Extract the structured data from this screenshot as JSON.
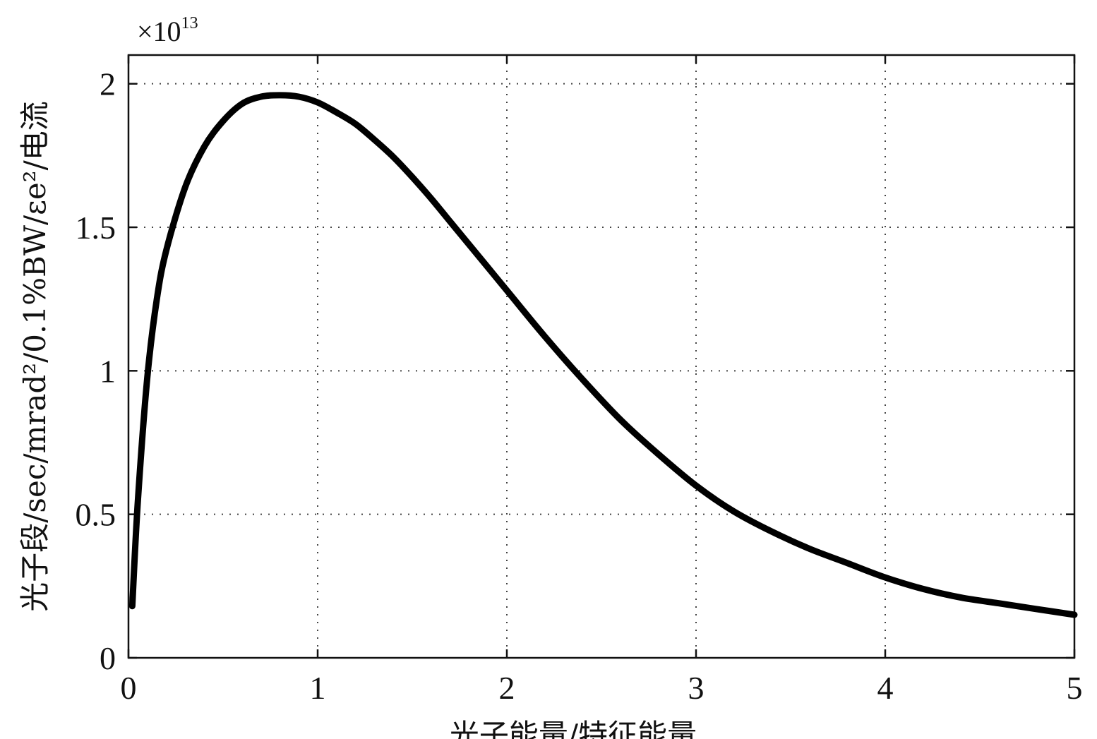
{
  "chart_data": {
    "type": "line",
    "title": "",
    "xlabel": "光子能量/特征能量",
    "ylabel": "光子段/sec/mrad²/0.1%BW/εe²/电流",
    "y_multiplier": "×10",
    "y_multiplier_exponent": "13",
    "xlim": [
      0,
      5
    ],
    "ylim": [
      0,
      2.1
    ],
    "x_ticks": [
      "0",
      "1",
      "2",
      "3",
      "4",
      "5"
    ],
    "y_ticks": [
      "0",
      "0.5",
      "1",
      "1.5",
      "2"
    ],
    "grid": true,
    "x_tick_values": [
      0,
      1,
      2,
      3,
      4,
      5
    ],
    "y_tick_values": [
      0,
      0.5,
      1,
      1.5,
      2
    ],
    "series": [
      {
        "x": [
          0.02,
          0.05,
          0.1,
          0.15,
          0.2,
          0.3,
          0.4,
          0.5,
          0.6,
          0.7,
          0.8,
          0.9,
          1.0,
          1.1,
          1.2,
          1.3,
          1.4,
          1.5,
          1.6,
          1.7,
          1.8,
          1.9,
          2.0,
          2.2,
          2.4,
          2.6,
          2.8,
          3.0,
          3.2,
          3.4,
          3.6,
          3.8,
          4.0,
          4.2,
          4.4,
          4.6,
          4.8,
          5.0
        ],
        "values": [
          0.18,
          0.55,
          0.98,
          1.25,
          1.42,
          1.64,
          1.78,
          1.87,
          1.93,
          1.955,
          1.96,
          1.955,
          1.935,
          1.9,
          1.86,
          1.805,
          1.745,
          1.675,
          1.6,
          1.52,
          1.44,
          1.36,
          1.28,
          1.12,
          0.97,
          0.83,
          0.71,
          0.6,
          0.51,
          0.44,
          0.38,
          0.33,
          0.28,
          0.24,
          0.21,
          0.19,
          0.17,
          0.15
        ]
      }
    ]
  }
}
